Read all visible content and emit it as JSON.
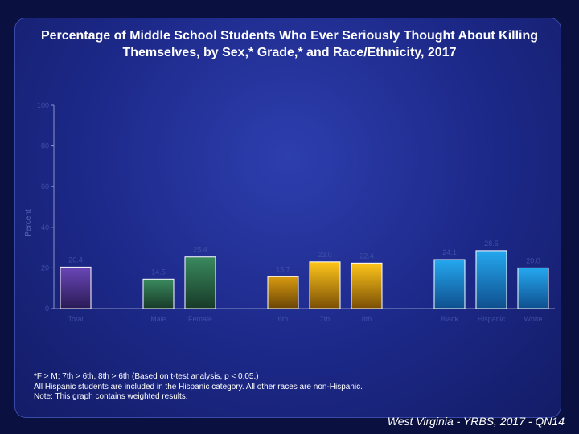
{
  "title": "Percentage of Middle School Students Who Ever Seriously Thought About Killing Themselves, by Sex,* Grade,* and Race/Ethnicity, 2017",
  "footnotes": [
    "*F > M; 7th > 6th, 8th > 6th (Based on t-test analysis, p < 0.05.)",
    "All Hispanic students are included in the Hispanic category.  All other races are non-Hispanic.",
    "Note: This graph contains weighted results."
  ],
  "source": "West Virginia - YRBS, 2017 - QN14",
  "chart_data": {
    "type": "bar",
    "ylabel": "Percent",
    "ylim": [
      0,
      100
    ],
    "yticks": [
      0,
      20,
      40,
      60,
      80,
      100
    ],
    "categories": [
      "Total",
      "Male",
      "Female",
      "6th",
      "7th",
      "8th",
      "Black",
      "Hispanic",
      "White"
    ],
    "values": [
      20.4,
      14.5,
      25.4,
      15.7,
      23.0,
      22.4,
      24.1,
      28.5,
      20.0
    ],
    "value_labels": [
      "20.4",
      "14.5",
      "25.4",
      "15.7",
      "23.0",
      "22.4",
      "24.1",
      "28.5",
      "20.0"
    ],
    "colors": [
      "#5a3a9e",
      "#2c6e4a",
      "#2c6e4a",
      "#c9900a",
      "#ffc107",
      "#ffc107",
      "#1d9fe6",
      "#1d9fe6",
      "#1d9fe6"
    ],
    "grid": false
  }
}
